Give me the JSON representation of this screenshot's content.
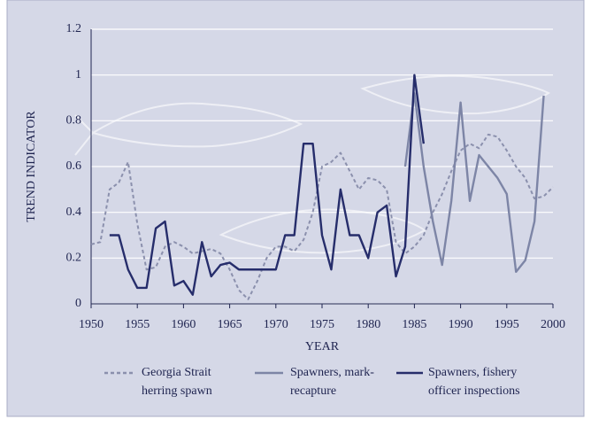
{
  "chart_data": {
    "type": "line",
    "xlabel": "YEAR",
    "ylabel": "TREND INDICATOR",
    "xlim": [
      1950,
      2000
    ],
    "xticks": [
      1950,
      1955,
      1960,
      1965,
      1970,
      1975,
      1980,
      1985,
      1990,
      1995,
      2000
    ],
    "ylim": [
      0,
      1.2
    ],
    "yticks": [
      0,
      0.2,
      0.4,
      0.6,
      0.8,
      1,
      1.2
    ],
    "grid": true,
    "legend": "bottom",
    "series": [
      {
        "name": "Georgia Strait herring spawn",
        "color": "#8b90ad",
        "dashed": true,
        "x": [
          1950,
          1951,
          1952,
          1953,
          1954,
          1955,
          1956,
          1957,
          1958,
          1959,
          1960,
          1961,
          1962,
          1963,
          1964,
          1965,
          1966,
          1967,
          1968,
          1969,
          1970,
          1971,
          1972,
          1973,
          1974,
          1975,
          1976,
          1977,
          1978,
          1979,
          1980,
          1981,
          1982,
          1983,
          1984,
          1985,
          1986,
          1987,
          1988,
          1989,
          1990,
          1991,
          1992,
          1993,
          1994,
          1995,
          1996,
          1997,
          1998,
          1999,
          2000
        ],
        "values": [
          0.26,
          0.27,
          0.5,
          0.53,
          0.62,
          0.35,
          0.15,
          0.16,
          0.25,
          0.27,
          0.25,
          0.22,
          0.23,
          0.24,
          0.22,
          0.15,
          0.06,
          0.02,
          0.1,
          0.2,
          0.25,
          0.25,
          0.23,
          0.28,
          0.4,
          0.6,
          0.62,
          0.66,
          0.58,
          0.5,
          0.55,
          0.54,
          0.5,
          0.27,
          0.22,
          0.25,
          0.3,
          0.4,
          0.48,
          0.58,
          0.67,
          0.7,
          0.68,
          0.74,
          0.73,
          0.67,
          0.6,
          0.55,
          0.46,
          0.47,
          0.51
        ]
      },
      {
        "name": "Spawners, mark-recapture",
        "color": "#7d85a6",
        "dashed": false,
        "x": [
          1984,
          1985,
          1986,
          1987,
          1988,
          1989,
          1990,
          1991,
          1992,
          1993,
          1994,
          1995,
          1996,
          1997,
          1998,
          1999
        ],
        "values": [
          0.6,
          0.92,
          0.6,
          0.36,
          0.17,
          0.45,
          0.88,
          0.45,
          0.65,
          0.6,
          0.55,
          0.48,
          0.14,
          0.19,
          0.36,
          0.91
        ]
      },
      {
        "name": "Spawners, fishery officer inspections",
        "color": "#262d6b",
        "dashed": false,
        "x": [
          1952,
          1953,
          1954,
          1955,
          1956,
          1957,
          1958,
          1959,
          1960,
          1961,
          1962,
          1963,
          1964,
          1965,
          1966,
          1967,
          1968,
          1969,
          1970,
          1971,
          1972,
          1973,
          1974,
          1975,
          1976,
          1977,
          1978,
          1979,
          1980,
          1981,
          1982,
          1983,
          1984,
          1985,
          1986
        ],
        "values": [
          0.3,
          0.3,
          0.15,
          0.07,
          0.07,
          0.33,
          0.36,
          0.08,
          0.1,
          0.04,
          0.27,
          0.12,
          0.17,
          0.18,
          0.15,
          0.15,
          0.15,
          0.15,
          0.15,
          0.3,
          0.3,
          0.7,
          0.7,
          0.3,
          0.15,
          0.5,
          0.3,
          0.3,
          0.2,
          0.4,
          0.43,
          0.12,
          0.25,
          1,
          0.7
        ]
      }
    ]
  }
}
